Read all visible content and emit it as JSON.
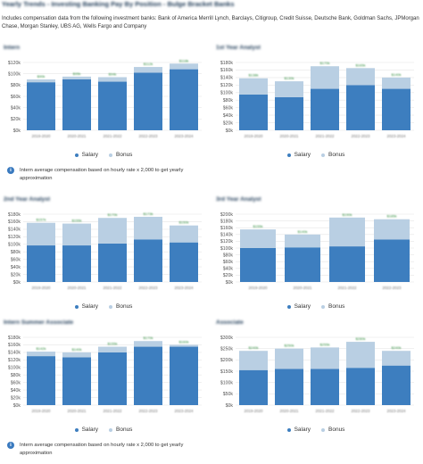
{
  "page": {
    "title": "Yearly Trends - Investing Banking Pay By Position - Bulge Bracket Banks",
    "description": "Includes compensation data from the following investment banks: Bank of America Merrill Lynch, Barclays, Citigroup, Credit Suisse, Deutsche Bank, Goldman Sachs, JPMorgan Chase, Morgan Stanley, UBS AG, Wells Fargo and Company"
  },
  "legend": {
    "salary": "Salary",
    "bonus": "Bonus"
  },
  "colors": {
    "salary": "#3d7ebf",
    "bonus": "#b9cfe3",
    "gridline": "#e6e6e6"
  },
  "note_icon": "info-icon",
  "panels": [
    {
      "title": "Intern",
      "note": "Intern average compensation based on hourly rate x 2,000 to get yearly approximation",
      "chart_data": {
        "type": "bar",
        "stacked": true,
        "categories": [
          "2019-2020",
          "2020-2021",
          "2021-2022",
          "2022-2023",
          "2023-2024"
        ],
        "series": [
          {
            "name": "Salary",
            "values": [
              85000,
              90000,
              86000,
              102000,
              108000
            ]
          },
          {
            "name": "Bonus",
            "values": [
              5000,
              5000,
              8000,
              10000,
              10000
            ]
          }
        ],
        "totals_labels": [
          "$90k",
          "$95k",
          "$94k",
          "$112k",
          "$118k"
        ],
        "yticks": [
          "$0k",
          "$20k",
          "$40k",
          "$60k",
          "$80k",
          "$100k",
          "$120k"
        ],
        "ylim": [
          0,
          120000
        ],
        "grid": true,
        "legend_position": "bottom"
      }
    },
    {
      "title": "1st Year Analyst",
      "note": "",
      "chart_data": {
        "type": "bar",
        "stacked": true,
        "categories": [
          "2019-2020",
          "2020-2021",
          "2021-2022",
          "2022-2023",
          "2023-2024"
        ],
        "series": [
          {
            "name": "Salary",
            "values": [
              95000,
              88000,
              110000,
              120000,
              110000
            ]
          },
          {
            "name": "Bonus",
            "values": [
              43000,
              42000,
              60000,
              45000,
              30000
            ]
          }
        ],
        "totals_labels": [
          "$138k",
          "$130k",
          "$170k",
          "$165k",
          "$140k"
        ],
        "yticks": [
          "$0k",
          "$20k",
          "$40k",
          "$60k",
          "$80k",
          "$100k",
          "$120k",
          "$140k",
          "$160k",
          "$180k"
        ],
        "ylim": [
          0,
          180000
        ],
        "grid": true,
        "legend_position": "bottom"
      }
    },
    {
      "title": "2nd Year Analyst",
      "note": "",
      "chart_data": {
        "type": "bar",
        "stacked": true,
        "categories": [
          "2019-2020",
          "2020-2021",
          "2021-2022",
          "2022-2023",
          "2023-2024"
        ],
        "series": [
          {
            "name": "Salary",
            "values": [
              97000,
              97000,
              102000,
              113000,
              105000
            ]
          },
          {
            "name": "Bonus",
            "values": [
              60000,
              58000,
              68000,
              60000,
              45000
            ]
          }
        ],
        "totals_labels": [
          "$157k",
          "$155k",
          "$170k",
          "$173k",
          "$150k"
        ],
        "yticks": [
          "$0k",
          "$20k",
          "$40k",
          "$60k",
          "$80k",
          "$100k",
          "$120k",
          "$140k",
          "$160k",
          "$180k"
        ],
        "ylim": [
          0,
          180000
        ],
        "grid": true,
        "legend_position": "bottom"
      }
    },
    {
      "title": "3rd Year Analyst",
      "note": "",
      "chart_data": {
        "type": "bar",
        "stacked": true,
        "categories": [
          "2019-2020",
          "2020-2021",
          "2021-2022",
          "2022-2023"
        ],
        "series": [
          {
            "name": "Salary",
            "values": [
              100000,
              102000,
              105000,
              125000
            ]
          },
          {
            "name": "Bonus",
            "values": [
              55000,
              38000,
              85000,
              60000
            ]
          }
        ],
        "totals_labels": [
          "$155k",
          "$140k",
          "$190k",
          "$185k"
        ],
        "yticks": [
          "$0k",
          "$20k",
          "$40k",
          "$60k",
          "$80k",
          "$100k",
          "$120k",
          "$140k",
          "$160k",
          "$180k",
          "$200k"
        ],
        "ylim": [
          0,
          200000
        ],
        "grid": true,
        "legend_position": "bottom"
      }
    },
    {
      "title": "Intern Summer Associate",
      "note": "Intern average compensation based on hourly rate x 2,000 to get yearly approximation",
      "chart_data": {
        "type": "bar",
        "stacked": true,
        "categories": [
          "2019-2020",
          "2020-2021",
          "2021-2022",
          "2022-2023",
          "2023-2024"
        ],
        "series": [
          {
            "name": "Salary",
            "values": [
              130000,
              127000,
              140000,
              155000,
              155000
            ]
          },
          {
            "name": "Bonus",
            "values": [
              12000,
              13000,
              15000,
              15000,
              5000
            ]
          }
        ],
        "totals_labels": [
          "$142k",
          "$140k",
          "$155k",
          "$170k",
          "$160k"
        ],
        "yticks": [
          "$0k",
          "$20k",
          "$40k",
          "$60k",
          "$80k",
          "$100k",
          "$120k",
          "$140k",
          "$160k",
          "$180k"
        ],
        "ylim": [
          0,
          180000
        ],
        "grid": true,
        "legend_position": "bottom"
      }
    },
    {
      "title": "Associate",
      "note": "",
      "chart_data": {
        "type": "bar",
        "stacked": true,
        "categories": [
          "2019-2020",
          "2020-2021",
          "2021-2022",
          "2022-2023",
          "2023-2024"
        ],
        "series": [
          {
            "name": "Salary",
            "values": [
              155000,
              160000,
              160000,
              165000,
              175000
            ]
          },
          {
            "name": "Bonus",
            "values": [
              85000,
              90000,
              95000,
              115000,
              65000
            ]
          }
        ],
        "totals_labels": [
          "$240k",
          "$250k",
          "$255k",
          "$280k",
          "$240k"
        ],
        "yticks": [
          "$0k",
          "$50k",
          "$100k",
          "$150k",
          "$200k",
          "$250k",
          "$300k"
        ],
        "ylim": [
          0,
          300000
        ],
        "grid": true,
        "legend_position": "bottom"
      }
    }
  ]
}
